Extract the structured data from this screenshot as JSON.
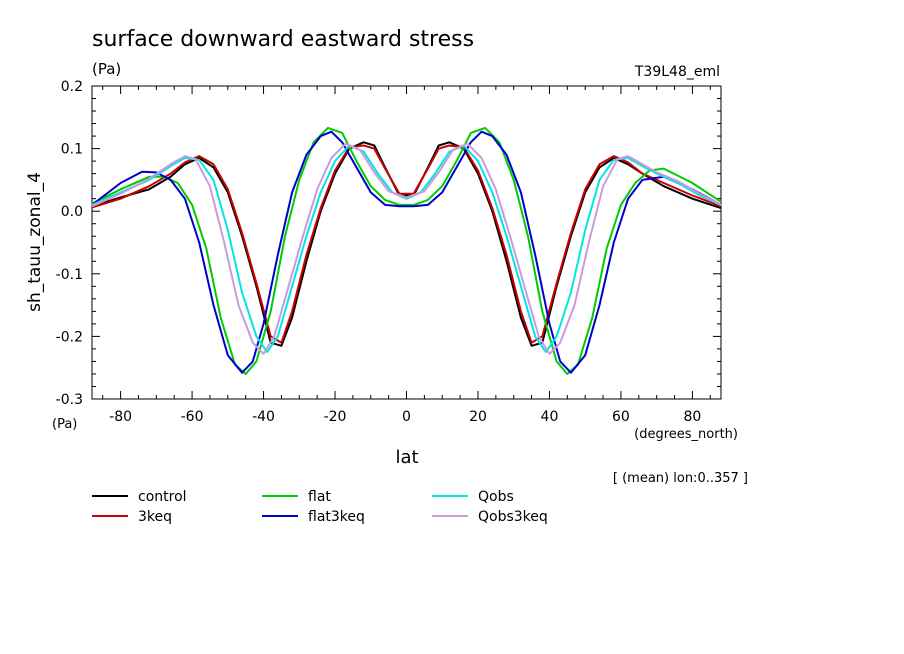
{
  "chart_data": {
    "type": "line",
    "title": "surface downward eastward stress",
    "units_label": "(Pa)",
    "experiment_label": "T39L48_eml",
    "ylabel": "sh_tauu_zonal_4",
    "y_units_label": "(Pa)",
    "xlabel": "lat",
    "x_units_label": "(degrees_north)",
    "mean_note": "[ (mean) lon:0..357 ]",
    "xlim": [
      -88,
      88
    ],
    "ylim": [
      -0.3,
      0.2
    ],
    "x_ticks": [
      -80,
      -60,
      -40,
      -20,
      0,
      20,
      40,
      60,
      80
    ],
    "x_tick_labels": [
      "-80",
      "-60",
      "-40",
      "-20",
      "0",
      "20",
      "40",
      "60",
      "80"
    ],
    "y_ticks": [
      -0.3,
      -0.2,
      -0.1,
      0.0,
      0.1,
      0.2
    ],
    "y_tick_labels": [
      "-0.3",
      "-0.2",
      "-0.1",
      "0.0",
      "0.1",
      "0.2"
    ],
    "grid": false,
    "legend_position": "bottom-left",
    "series": [
      {
        "name": "control",
        "color": "#000000",
        "x": [
          -88,
          -80,
          -72,
          -66,
          -62,
          -58,
          -54,
          -50,
          -46,
          -42,
          -38,
          -35,
          -32,
          -28,
          -24,
          -20,
          -16,
          -12,
          -9,
          -6,
          -2,
          2,
          6,
          9,
          12,
          16,
          20,
          24,
          28,
          32,
          35,
          38,
          42,
          46,
          50,
          54,
          58,
          62,
          66,
          72,
          80,
          88
        ],
        "y": [
          0.008,
          0.022,
          0.035,
          0.055,
          0.075,
          0.085,
          0.07,
          0.03,
          -0.04,
          -0.12,
          -0.21,
          -0.215,
          -0.17,
          -0.08,
          0.0,
          0.06,
          0.1,
          0.11,
          0.105,
          0.07,
          0.025,
          0.025,
          0.07,
          0.105,
          0.11,
          0.1,
          0.06,
          0.0,
          -0.08,
          -0.17,
          -0.215,
          -0.21,
          -0.12,
          -0.04,
          0.03,
          0.07,
          0.085,
          0.075,
          0.06,
          0.04,
          0.02,
          0.005
        ]
      },
      {
        "name": "3keq",
        "color": "#cc0000",
        "x": [
          -88,
          -80,
          -72,
          -66,
          -62,
          -58,
          -54,
          -50,
          -46,
          -42,
          -38,
          -35,
          -32,
          -28,
          -24,
          -20,
          -16,
          -12,
          -9,
          -6,
          -2,
          2,
          6,
          9,
          12,
          16,
          20,
          24,
          28,
          32,
          35,
          38,
          42,
          46,
          50,
          54,
          58,
          62,
          66,
          72,
          80,
          88
        ],
        "y": [
          0.006,
          0.02,
          0.04,
          0.06,
          0.078,
          0.088,
          0.075,
          0.035,
          -0.035,
          -0.115,
          -0.2,
          -0.21,
          -0.16,
          -0.07,
          0.005,
          0.065,
          0.102,
          0.105,
          0.1,
          0.068,
          0.028,
          0.028,
          0.068,
          0.1,
          0.105,
          0.102,
          0.065,
          0.005,
          -0.07,
          -0.16,
          -0.21,
          -0.2,
          -0.115,
          -0.035,
          0.035,
          0.075,
          0.088,
          0.078,
          0.06,
          0.045,
          0.025,
          0.008
        ]
      },
      {
        "name": "flat",
        "color": "#00cc00",
        "x": [
          -88,
          -80,
          -72,
          -68,
          -64,
          -60,
          -56,
          -52,
          -48,
          -45,
          -42,
          -38,
          -34,
          -30,
          -26,
          -22,
          -18,
          -14,
          -10,
          -6,
          -2,
          2,
          6,
          10,
          14,
          18,
          22,
          26,
          30,
          34,
          38,
          42,
          45,
          48,
          52,
          56,
          60,
          64,
          68,
          72,
          80,
          88
        ],
        "y": [
          0.012,
          0.035,
          0.055,
          0.055,
          0.045,
          0.01,
          -0.06,
          -0.17,
          -0.245,
          -0.26,
          -0.24,
          -0.16,
          -0.04,
          0.05,
          0.11,
          0.133,
          0.125,
          0.08,
          0.04,
          0.018,
          0.01,
          0.01,
          0.018,
          0.04,
          0.08,
          0.125,
          0.133,
          0.11,
          0.05,
          -0.04,
          -0.16,
          -0.24,
          -0.26,
          -0.245,
          -0.17,
          -0.06,
          0.01,
          0.045,
          0.065,
          0.068,
          0.045,
          0.015
        ]
      },
      {
        "name": "flat3keq",
        "color": "#0000cc",
        "x": [
          -88,
          -80,
          -74,
          -70,
          -66,
          -62,
          -58,
          -54,
          -50,
          -46,
          -43,
          -40,
          -36,
          -32,
          -28,
          -24,
          -21,
          -18,
          -14,
          -10,
          -6,
          -2,
          2,
          6,
          10,
          14,
          18,
          21,
          24,
          28,
          32,
          36,
          40,
          43,
          46,
          50,
          54,
          58,
          62,
          66,
          72,
          80,
          88
        ],
        "y": [
          0.01,
          0.045,
          0.063,
          0.062,
          0.05,
          0.02,
          -0.05,
          -0.15,
          -0.23,
          -0.258,
          -0.24,
          -0.18,
          -0.07,
          0.03,
          0.09,
          0.12,
          0.127,
          0.11,
          0.07,
          0.03,
          0.01,
          0.008,
          0.008,
          0.01,
          0.03,
          0.07,
          0.11,
          0.127,
          0.12,
          0.09,
          0.03,
          -0.07,
          -0.18,
          -0.24,
          -0.258,
          -0.23,
          -0.15,
          -0.05,
          0.02,
          0.05,
          0.055,
          0.035,
          0.01
        ]
      },
      {
        "name": "Qobs",
        "color": "#00e5e5",
        "x": [
          -88,
          -80,
          -72,
          -66,
          -62,
          -58,
          -54,
          -50,
          -46,
          -42,
          -39,
          -36,
          -32,
          -28,
          -24,
          -20,
          -16,
          -12,
          -8,
          -4,
          0,
          4,
          8,
          12,
          16,
          20,
          24,
          28,
          32,
          36,
          39,
          42,
          46,
          50,
          54,
          58,
          62,
          66,
          70,
          76,
          82,
          88
        ],
        "y": [
          0.01,
          0.03,
          0.05,
          0.072,
          0.085,
          0.082,
          0.05,
          -0.03,
          -0.13,
          -0.2,
          -0.225,
          -0.2,
          -0.12,
          -0.04,
          0.03,
          0.08,
          0.105,
          0.095,
          0.06,
          0.03,
          0.02,
          0.03,
          0.06,
          0.095,
          0.105,
          0.08,
          0.03,
          -0.04,
          -0.12,
          -0.2,
          -0.225,
          -0.2,
          -0.13,
          -0.03,
          0.05,
          0.082,
          0.085,
          0.072,
          0.06,
          0.045,
          0.025,
          0.01
        ]
      },
      {
        "name": "Qobs3keq",
        "color": "#cc99dd",
        "x": [
          -88,
          -80,
          -72,
          -66,
          -62,
          -59,
          -55,
          -51,
          -47,
          -43,
          -40,
          -37,
          -33,
          -29,
          -25,
          -21,
          -17,
          -13,
          -9,
          -5,
          0,
          5,
          9,
          13,
          17,
          21,
          25,
          29,
          33,
          37,
          40,
          43,
          47,
          51,
          55,
          59,
          62,
          66,
          70,
          76,
          82,
          88
        ],
        "y": [
          0.008,
          0.028,
          0.052,
          0.075,
          0.088,
          0.083,
          0.04,
          -0.05,
          -0.15,
          -0.21,
          -0.228,
          -0.2,
          -0.12,
          -0.04,
          0.035,
          0.085,
          0.108,
          0.098,
          0.062,
          0.032,
          0.022,
          0.032,
          0.062,
          0.098,
          0.108,
          0.085,
          0.035,
          -0.04,
          -0.12,
          -0.2,
          -0.228,
          -0.21,
          -0.15,
          -0.05,
          0.04,
          0.083,
          0.088,
          0.075,
          0.062,
          0.048,
          0.028,
          0.01
        ]
      }
    ]
  },
  "legend": {
    "columns": [
      [
        {
          "label": "control",
          "color": "#000000"
        },
        {
          "label": "3keq",
          "color": "#cc0000"
        }
      ],
      [
        {
          "label": "flat",
          "color": "#00cc00"
        },
        {
          "label": "flat3keq",
          "color": "#0000cc"
        }
      ],
      [
        {
          "label": "Qobs",
          "color": "#00e5e5"
        },
        {
          "label": "Qobs3keq",
          "color": "#cc99dd"
        }
      ]
    ]
  }
}
